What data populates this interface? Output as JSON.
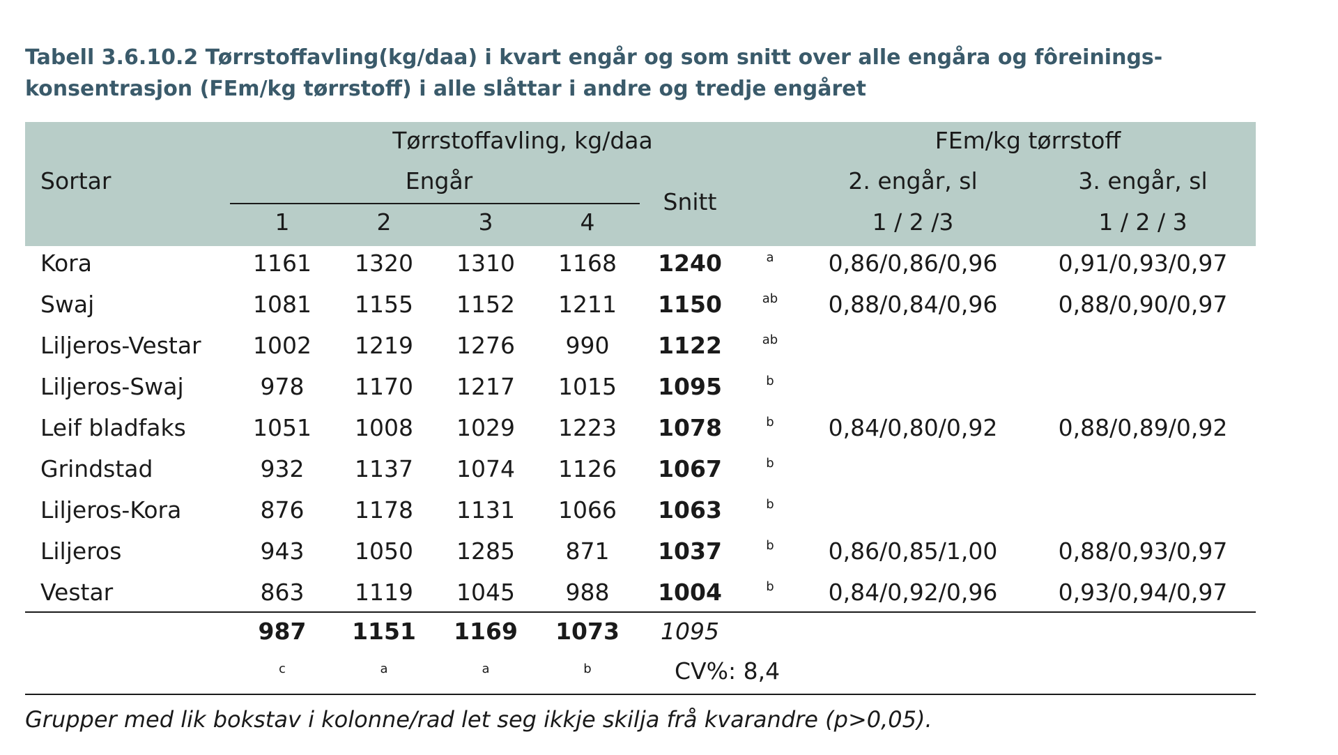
{
  "caption": "Tabell 3.6.10.2 Tørrstoffavling(kg/daa) i kvart engår og som snitt over alle engåra og fôreinings-konsentrasjon (FEm/kg tørrstoff) i alle slåttar i andre og tredje engåret",
  "header": {
    "sortar": "Sortar",
    "yield_group": "Tørrstoffavling, kg/daa",
    "engar": "Engår",
    "years": [
      "1",
      "2",
      "3",
      "4"
    ],
    "snitt": "Snitt",
    "fem_group": "FEm/kg tørrstoff",
    "eng2": "2. engår, sl",
    "eng3": "3. engår, sl",
    "cuts2": "1 / 2 /3",
    "cuts3": "1 / 2 / 3"
  },
  "rows": [
    {
      "name": "Kora",
      "y1": "1161",
      "y2": "1320",
      "y3": "1310",
      "y4": "1168",
      "snitt": "1240",
      "grp": "a",
      "fem2": "0,86/0,86/0,96",
      "fem3": "0,91/0,93/0,97"
    },
    {
      "name": "Swaj",
      "y1": "1081",
      "y2": "1155",
      "y3": "1152",
      "y4": "1211",
      "snitt": "1150",
      "grp": "ab",
      "fem2": "0,88/0,84/0,96",
      "fem3": "0,88/0,90/0,97"
    },
    {
      "name": "Liljeros-Vestar",
      "y1": "1002",
      "y2": "1219",
      "y3": "1276",
      "y4": "990",
      "snitt": "1122",
      "grp": "ab",
      "fem2": "",
      "fem3": ""
    },
    {
      "name": "Liljeros-Swaj",
      "y1": "978",
      "y2": "1170",
      "y3": "1217",
      "y4": "1015",
      "snitt": "1095",
      "grp": "b",
      "fem2": "",
      "fem3": ""
    },
    {
      "name": "Leif bladfaks",
      "y1": "1051",
      "y2": "1008",
      "y3": "1029",
      "y4": "1223",
      "snitt": "1078",
      "grp": "b",
      "fem2": "0,84/0,80/0,92",
      "fem3": "0,88/0,89/0,92"
    },
    {
      "name": "Grindstad",
      "y1": "932",
      "y2": "1137",
      "y3": "1074",
      "y4": "1126",
      "snitt": "1067",
      "grp": "b",
      "fem2": "",
      "fem3": ""
    },
    {
      "name": "Liljeros-Kora",
      "y1": "876",
      "y2": "1178",
      "y3": "1131",
      "y4": "1066",
      "snitt": "1063",
      "grp": "b",
      "fem2": "",
      "fem3": ""
    },
    {
      "name": "Liljeros",
      "y1": "943",
      "y2": "1050",
      "y3": "1285",
      "y4": "871",
      "snitt": "1037",
      "grp": "b",
      "fem2": "0,86/0,85/1,00",
      "fem3": "0,88/0,93/0,97"
    },
    {
      "name": "Vestar",
      "y1": "863",
      "y2": "1119",
      "y3": "1045",
      "y4": "988",
      "snitt": "1004",
      "grp": "b",
      "fem2": "0,84/0,92/0,96",
      "fem3": "0,93/0,94/0,97"
    }
  ],
  "totals": {
    "y1": "987",
    "y2": "1151",
    "y3": "1169",
    "y4": "1073",
    "snitt": "1095"
  },
  "total_groups": {
    "y1": "c",
    "y2": "a",
    "y3": "a",
    "y4": "b"
  },
  "cv": "CV%: 8,4",
  "footnote": "Grupper med lik bokstav i kolonne/rad let seg ikkje skilja frå kvarandre (p>0,05).",
  "colors": {
    "header_bg": "#b8cdc8",
    "caption": "#3a5a6a"
  }
}
